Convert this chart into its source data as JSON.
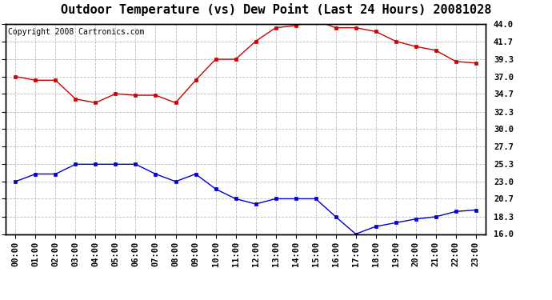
{
  "title": "Outdoor Temperature (vs) Dew Point (Last 24 Hours) 20081028",
  "copyright": "Copyright 2008 Cartronics.com",
  "hours": [
    "00:00",
    "01:00",
    "02:00",
    "03:00",
    "04:00",
    "05:00",
    "06:00",
    "07:00",
    "08:00",
    "09:00",
    "10:00",
    "11:00",
    "12:00",
    "13:00",
    "14:00",
    "15:00",
    "16:00",
    "17:00",
    "18:00",
    "19:00",
    "20:00",
    "21:00",
    "22:00",
    "23:00"
  ],
  "temp_red": [
    37.0,
    36.5,
    36.5,
    34.0,
    33.5,
    34.7,
    34.5,
    34.5,
    33.5,
    36.5,
    39.3,
    39.3,
    41.7,
    43.5,
    43.8,
    44.5,
    43.5,
    43.5,
    43.0,
    41.7,
    41.0,
    40.5,
    39.0,
    38.8
  ],
  "dew_blue": [
    23.0,
    24.0,
    24.0,
    25.3,
    25.3,
    25.3,
    25.3,
    24.0,
    23.0,
    24.0,
    22.0,
    20.7,
    20.0,
    20.7,
    20.7,
    20.7,
    18.3,
    16.0,
    17.0,
    17.5,
    18.0,
    18.3,
    19.0,
    19.2
  ],
  "ylim": [
    16.0,
    44.0
  ],
  "yticks": [
    16.0,
    18.3,
    20.7,
    23.0,
    25.3,
    27.7,
    30.0,
    32.3,
    34.7,
    37.0,
    39.3,
    41.7,
    44.0
  ],
  "red_color": "#cc0000",
  "blue_color": "#0000cc",
  "bg_color": "#ffffff",
  "plot_bg_color": "#ffffff",
  "grid_color": "#bbbbbb",
  "title_fontsize": 11,
  "axis_fontsize": 7.5,
  "copyright_fontsize": 7
}
